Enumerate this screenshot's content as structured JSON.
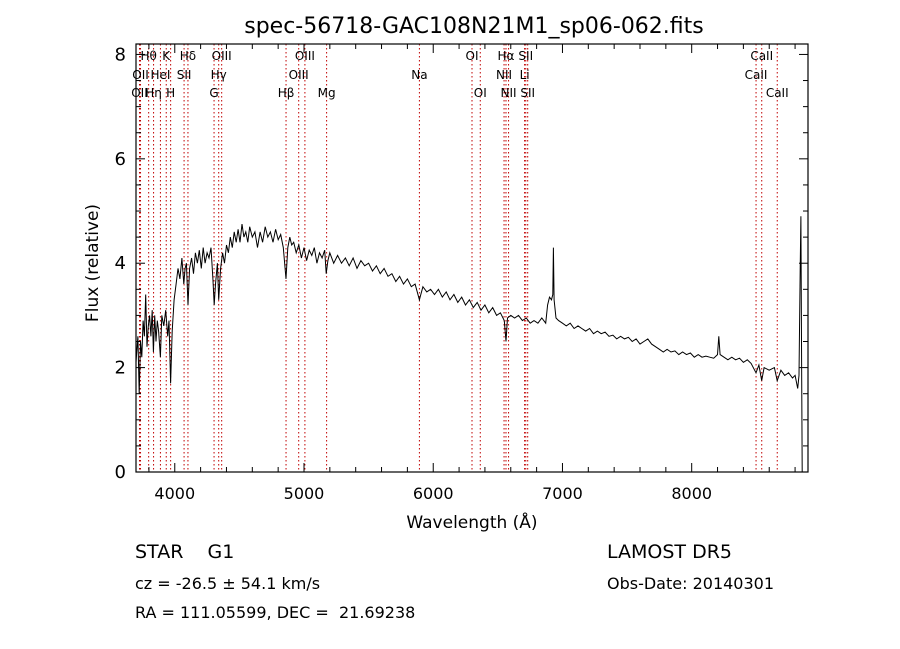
{
  "chart_data": {
    "type": "line",
    "title": "spec-56718-GAC108N21M1_sp06-062.fits",
    "xlabel": "Wavelength (Å)",
    "ylabel": "Flux (relative)",
    "xlim": [
      3700,
      8900
    ],
    "ylim": [
      0,
      8.2
    ],
    "xticks": [
      4000,
      5000,
      6000,
      7000,
      8000
    ],
    "yticks": [
      0,
      2,
      4,
      6,
      8
    ],
    "grid": false,
    "series": [
      {
        "line_color": "#000000",
        "points": [
          [
            3700,
            2.1
          ],
          [
            3715,
            2.6
          ],
          [
            3725,
            1.5
          ],
          [
            3735,
            2.5
          ],
          [
            3745,
            2.2
          ],
          [
            3755,
            2.9
          ],
          [
            3765,
            2.6
          ],
          [
            3775,
            3.4
          ],
          [
            3785,
            2.4
          ],
          [
            3795,
            2.8
          ],
          [
            3805,
            3.0
          ],
          [
            3815,
            2.6
          ],
          [
            3825,
            3.1
          ],
          [
            3835,
            2.3
          ],
          [
            3845,
            3.0
          ],
          [
            3855,
            2.5
          ],
          [
            3865,
            2.9
          ],
          [
            3875,
            2.7
          ],
          [
            3889,
            2.2
          ],
          [
            3900,
            3.0
          ],
          [
            3915,
            2.8
          ],
          [
            3930,
            3.1
          ],
          [
            3945,
            2.6
          ],
          [
            3955,
            2.9
          ],
          [
            3968,
            1.7
          ],
          [
            3980,
            2.7
          ],
          [
            3995,
            3.3
          ],
          [
            4010,
            3.6
          ],
          [
            4025,
            3.9
          ],
          [
            4040,
            3.7
          ],
          [
            4055,
            4.1
          ],
          [
            4070,
            3.6
          ],
          [
            4080,
            3.9
          ],
          [
            4090,
            4.0
          ],
          [
            4102,
            3.2
          ],
          [
            4115,
            3.9
          ],
          [
            4130,
            4.1
          ],
          [
            4145,
            3.8
          ],
          [
            4160,
            4.2
          ],
          [
            4175,
            4.0
          ],
          [
            4190,
            4.25
          ],
          [
            4205,
            3.9
          ],
          [
            4220,
            4.3
          ],
          [
            4235,
            4.0
          ],
          [
            4250,
            4.2
          ],
          [
            4265,
            4.1
          ],
          [
            4280,
            4.3
          ],
          [
            4295,
            3.7
          ],
          [
            4305,
            3.2
          ],
          [
            4315,
            3.6
          ],
          [
            4330,
            4.0
          ],
          [
            4340,
            3.3
          ],
          [
            4355,
            3.9
          ],
          [
            4370,
            4.2
          ],
          [
            4385,
            4.0
          ],
          [
            4400,
            4.35
          ],
          [
            4415,
            4.2
          ],
          [
            4430,
            4.5
          ],
          [
            4445,
            4.3
          ],
          [
            4460,
            4.6
          ],
          [
            4475,
            4.4
          ],
          [
            4490,
            4.65
          ],
          [
            4505,
            4.4
          ],
          [
            4520,
            4.75
          ],
          [
            4535,
            4.5
          ],
          [
            4550,
            4.6
          ],
          [
            4565,
            4.4
          ],
          [
            4580,
            4.7
          ],
          [
            4600,
            4.5
          ],
          [
            4620,
            4.6
          ],
          [
            4640,
            4.3
          ],
          [
            4660,
            4.6
          ],
          [
            4680,
            4.4
          ],
          [
            4700,
            4.7
          ],
          [
            4720,
            4.5
          ],
          [
            4740,
            4.6
          ],
          [
            4760,
            4.4
          ],
          [
            4780,
            4.65
          ],
          [
            4800,
            4.45
          ],
          [
            4820,
            4.55
          ],
          [
            4840,
            4.3
          ],
          [
            4861,
            3.7
          ],
          [
            4875,
            4.3
          ],
          [
            4890,
            4.5
          ],
          [
            4905,
            4.35
          ],
          [
            4920,
            4.4
          ],
          [
            4940,
            4.2
          ],
          [
            4960,
            4.35
          ],
          [
            4980,
            4.1
          ],
          [
            5000,
            4.3
          ],
          [
            5020,
            4.05
          ],
          [
            5040,
            4.25
          ],
          [
            5060,
            4.15
          ],
          [
            5080,
            4.3
          ],
          [
            5100,
            4.0
          ],
          [
            5120,
            4.2
          ],
          [
            5140,
            4.1
          ],
          [
            5160,
            4.25
          ],
          [
            5172,
            3.8
          ],
          [
            5185,
            4.05
          ],
          [
            5200,
            4.2
          ],
          [
            5230,
            4.0
          ],
          [
            5260,
            4.15
          ],
          [
            5290,
            4.0
          ],
          [
            5320,
            4.1
          ],
          [
            5350,
            3.95
          ],
          [
            5380,
            4.1
          ],
          [
            5410,
            3.9
          ],
          [
            5440,
            4.05
          ],
          [
            5470,
            3.95
          ],
          [
            5500,
            4.0
          ],
          [
            5530,
            3.85
          ],
          [
            5560,
            3.95
          ],
          [
            5590,
            3.8
          ],
          [
            5620,
            3.9
          ],
          [
            5650,
            3.75
          ],
          [
            5680,
            3.8
          ],
          [
            5710,
            3.65
          ],
          [
            5740,
            3.75
          ],
          [
            5770,
            3.6
          ],
          [
            5800,
            3.7
          ],
          [
            5830,
            3.55
          ],
          [
            5860,
            3.6
          ],
          [
            5893,
            3.3
          ],
          [
            5920,
            3.55
          ],
          [
            5950,
            3.45
          ],
          [
            5980,
            3.5
          ],
          [
            6010,
            3.4
          ],
          [
            6040,
            3.5
          ],
          [
            6070,
            3.35
          ],
          [
            6100,
            3.45
          ],
          [
            6130,
            3.3
          ],
          [
            6160,
            3.4
          ],
          [
            6190,
            3.25
          ],
          [
            6220,
            3.35
          ],
          [
            6250,
            3.2
          ],
          [
            6280,
            3.3
          ],
          [
            6310,
            3.15
          ],
          [
            6340,
            3.25
          ],
          [
            6370,
            3.1
          ],
          [
            6400,
            3.2
          ],
          [
            6430,
            3.05
          ],
          [
            6460,
            3.15
          ],
          [
            6490,
            3.0
          ],
          [
            6520,
            3.05
          ],
          [
            6550,
            2.9
          ],
          [
            6563,
            2.5
          ],
          [
            6575,
            2.95
          ],
          [
            6600,
            3.0
          ],
          [
            6630,
            2.95
          ],
          [
            6660,
            3.0
          ],
          [
            6690,
            2.9
          ],
          [
            6720,
            2.95
          ],
          [
            6750,
            2.85
          ],
          [
            6780,
            2.9
          ],
          [
            6810,
            2.85
          ],
          [
            6840,
            2.95
          ],
          [
            6870,
            2.85
          ],
          [
            6885,
            3.2
          ],
          [
            6900,
            3.35
          ],
          [
            6915,
            3.3
          ],
          [
            6925,
            3.4
          ],
          [
            6930,
            4.3
          ],
          [
            6935,
            3.3
          ],
          [
            6950,
            2.95
          ],
          [
            6970,
            2.9
          ],
          [
            7000,
            2.85
          ],
          [
            7030,
            2.8
          ],
          [
            7060,
            2.85
          ],
          [
            7090,
            2.75
          ],
          [
            7120,
            2.8
          ],
          [
            7150,
            2.75
          ],
          [
            7180,
            2.7
          ],
          [
            7210,
            2.75
          ],
          [
            7240,
            2.65
          ],
          [
            7270,
            2.7
          ],
          [
            7300,
            2.65
          ],
          [
            7330,
            2.68
          ],
          [
            7360,
            2.6
          ],
          [
            7390,
            2.62
          ],
          [
            7420,
            2.55
          ],
          [
            7450,
            2.6
          ],
          [
            7480,
            2.55
          ],
          [
            7510,
            2.58
          ],
          [
            7540,
            2.5
          ],
          [
            7570,
            2.55
          ],
          [
            7600,
            2.45
          ],
          [
            7630,
            2.5
          ],
          [
            7660,
            2.55
          ],
          [
            7690,
            2.45
          ],
          [
            7720,
            2.4
          ],
          [
            7750,
            2.35
          ],
          [
            7780,
            2.3
          ],
          [
            7810,
            2.35
          ],
          [
            7840,
            2.3
          ],
          [
            7870,
            2.32
          ],
          [
            7900,
            2.25
          ],
          [
            7930,
            2.3
          ],
          [
            7960,
            2.25
          ],
          [
            7990,
            2.28
          ],
          [
            8020,
            2.2
          ],
          [
            8050,
            2.25
          ],
          [
            8080,
            2.2
          ],
          [
            8110,
            2.22
          ],
          [
            8140,
            2.2
          ],
          [
            8170,
            2.18
          ],
          [
            8200,
            2.25
          ],
          [
            8210,
            2.6
          ],
          [
            8220,
            2.25
          ],
          [
            8250,
            2.2
          ],
          [
            8280,
            2.15
          ],
          [
            8310,
            2.2
          ],
          [
            8340,
            2.15
          ],
          [
            8370,
            2.18
          ],
          [
            8400,
            2.1
          ],
          [
            8430,
            2.15
          ],
          [
            8460,
            2.08
          ],
          [
            8498,
            1.9
          ],
          [
            8520,
            2.05
          ],
          [
            8542,
            1.75
          ],
          [
            8560,
            2.0
          ],
          [
            8600,
            1.95
          ],
          [
            8640,
            2.0
          ],
          [
            8662,
            1.75
          ],
          [
            8690,
            1.95
          ],
          [
            8720,
            1.85
          ],
          [
            8750,
            1.9
          ],
          [
            8780,
            1.8
          ],
          [
            8800,
            1.85
          ],
          [
            8820,
            1.6
          ],
          [
            8830,
            1.85
          ],
          [
            8840,
            3.9
          ],
          [
            8845,
            4.9
          ],
          [
            8850,
            2.5
          ],
          [
            8855,
            0.0
          ]
        ]
      }
    ],
    "lines": [
      {
        "wl": 3727,
        "label": "OII",
        "row": 2
      },
      {
        "wl": 3735,
        "label": "OII",
        "row": 1
      },
      {
        "wl": 3798,
        "label": "Hθ",
        "row": 0
      },
      {
        "wl": 3836,
        "label": "Hη",
        "row": 2
      },
      {
        "wl": 3889,
        "label": "HeI",
        "row": 1
      },
      {
        "wl": 3934,
        "label": "K",
        "row": 0
      },
      {
        "wl": 3968,
        "label": "H",
        "row": 2
      },
      {
        "wl": 4072,
        "label": "SII",
        "row": 1
      },
      {
        "wl": 4102,
        "label": "Hδ",
        "row": 0
      },
      {
        "wl": 4304,
        "label": "G",
        "row": 2
      },
      {
        "wl": 4340,
        "label": "Hγ",
        "row": 1
      },
      {
        "wl": 4363,
        "label": "OIII",
        "row": 0
      },
      {
        "wl": 4861,
        "label": "Hβ",
        "row": 2
      },
      {
        "wl": 4959,
        "label": "OIII",
        "row": 1
      },
      {
        "wl": 5007,
        "label": "OIII",
        "row": 0
      },
      {
        "wl": 5175,
        "label": "Mg",
        "row": 2
      },
      {
        "wl": 5893,
        "label": "Na",
        "row": 1
      },
      {
        "wl": 6300,
        "label": "OI",
        "row": 0
      },
      {
        "wl": 6364,
        "label": "OI",
        "row": 2
      },
      {
        "wl": 6548,
        "label": "NII",
        "row": 1
      },
      {
        "wl": 6563,
        "label": "Hα",
        "row": 0
      },
      {
        "wl": 6583,
        "label": "NII",
        "row": 2
      },
      {
        "wl": 6707,
        "label": "Li",
        "row": 1
      },
      {
        "wl": 6716,
        "label": "SII",
        "row": 0
      },
      {
        "wl": 6731,
        "label": "SII",
        "row": 2
      },
      {
        "wl": 8498,
        "label": "CaII",
        "row": 1
      },
      {
        "wl": 8542,
        "label": "CaII",
        "row": 0
      },
      {
        "wl": 8662,
        "label": "CaII",
        "row": 2
      }
    ]
  },
  "info": {
    "class": "STAR    G1",
    "survey": "LAMOST DR5",
    "cz": "cz = -26.5 ± 54.1 km/s",
    "obs_date": "Obs-Date: 20140301",
    "coords": "RA = 111.05599, DEC =  21.69238"
  }
}
